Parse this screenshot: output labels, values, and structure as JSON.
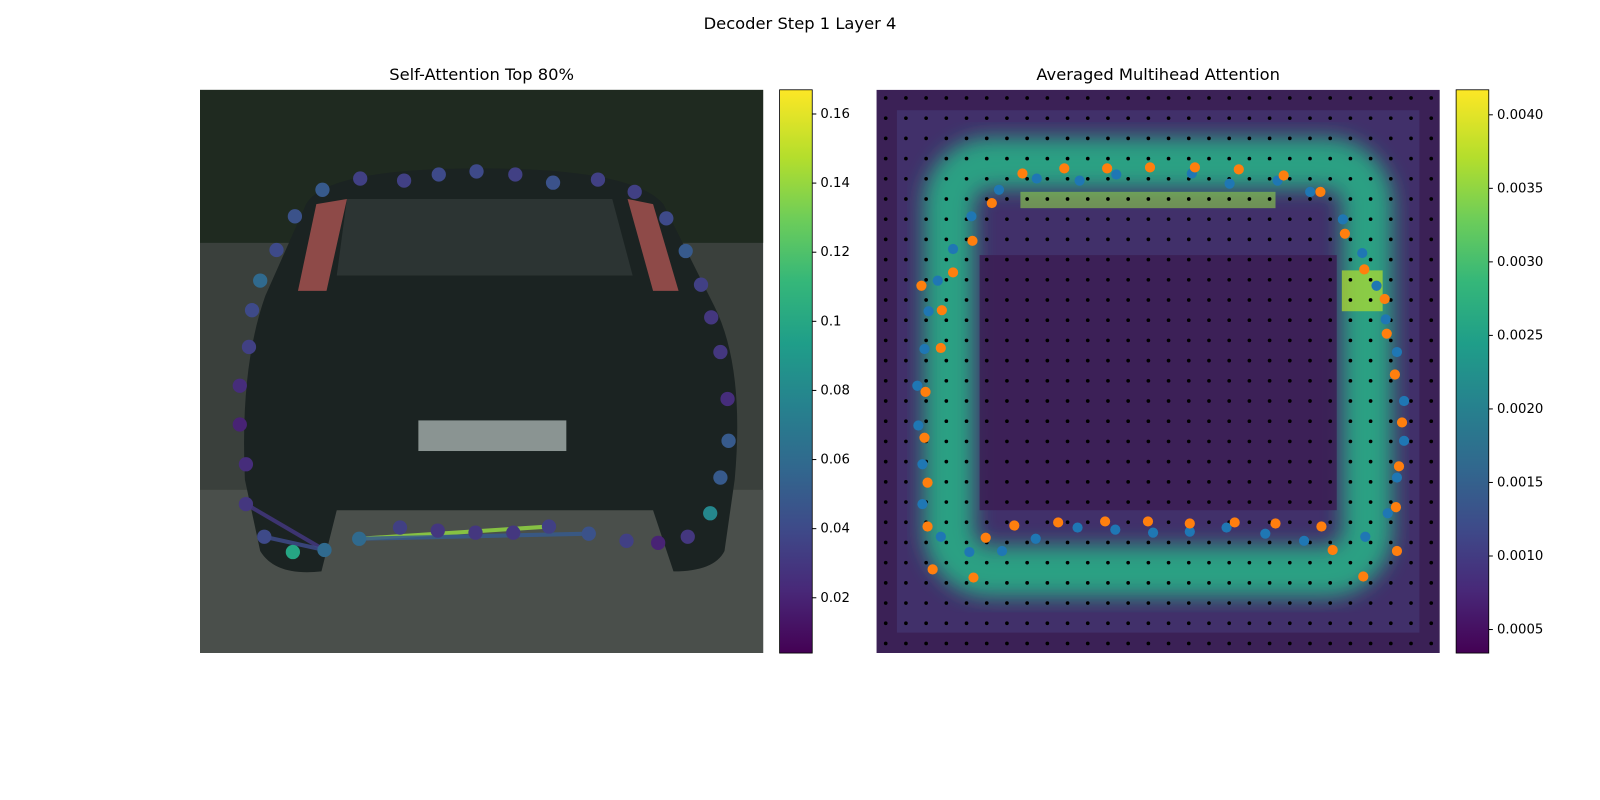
{
  "title": "Decoder Step 1 Layer 4",
  "chart_data": [
    {
      "type": "scatter",
      "title": "Self-Attention Top 80%",
      "points": {
        "x": [
          120,
          157,
          200,
          234,
          271,
          309,
          346,
          390,
          426,
          457,
          476,
          491,
          501,
          510,
          517,
          518,
          510,
          500,
          478,
          449,
          418,
          381,
          342,
          307,
          270,
          233,
          196,
          156,
          122,
          91,
          63,
          45,
          45,
          39,
          39,
          48,
          51,
          59,
          75,
          93
        ],
        "y": [
          98,
          87,
          89,
          83,
          80,
          83,
          91,
          88,
          100,
          126,
          158,
          191,
          223,
          257,
          303,
          344,
          380,
          415,
          438,
          444,
          442,
          435,
          428,
          434,
          434,
          432,
          429,
          440,
          451,
          453,
          438,
          406,
          367,
          328,
          290,
          252,
          216,
          187,
          157,
          124
        ],
        "values": [
          0.05,
          0.035,
          0.035,
          0.04,
          0.04,
          0.035,
          0.045,
          0.035,
          0.035,
          0.04,
          0.05,
          0.035,
          0.03,
          0.03,
          0.025,
          0.05,
          0.05,
          0.08,
          0.03,
          0.02,
          0.035,
          0.045,
          0.035,
          0.03,
          0.03,
          0.03,
          0.035,
          0.06,
          0.06,
          0.1,
          0.04,
          0.03,
          0.025,
          0.02,
          0.025,
          0.035,
          0.04,
          0.06,
          0.04,
          0.045
        ]
      },
      "links": [
        {
          "from": 27,
          "to": 22,
          "value": 0.14
        },
        {
          "from": 27,
          "to": 21,
          "value": 0.05
        },
        {
          "from": 31,
          "to": 28,
          "value": 0.03
        },
        {
          "from": 30,
          "to": 28,
          "value": 0.04
        }
      ],
      "clim": [
        0.004,
        0.167
      ],
      "cticks": [
        0.02,
        0.04,
        0.06,
        0.08,
        0.1,
        0.12,
        0.14,
        0.16
      ]
    },
    {
      "type": "scatter",
      "title": "Averaged Multihead Attention",
      "series": [
        {
          "color": "#1f77b4",
          "x": [
            157,
            199,
            235,
            309,
            346,
            393,
            425,
            457,
            476,
            490,
            499,
            510,
            517,
            517,
            510,
            501,
            479,
            419,
            381,
            343,
            307,
            271,
            234,
            197,
            156,
            123,
            91,
            63,
            45,
            45,
            41,
            40,
            47,
            51,
            60,
            75,
            93,
            120
          ],
          "y": [
            87,
            89,
            83,
            82,
            92,
            89,
            100,
            127,
            160,
            192,
            225,
            257,
            305,
            344,
            380,
            415,
            438,
            442,
            435,
            429,
            433,
            434,
            431,
            429,
            440,
            452,
            453,
            438,
            406,
            367,
            329,
            290,
            254,
            217,
            187,
            156,
            124,
            98
          ]
        },
        {
          "color": "#ff7f0e",
          "x": [
            143,
            184,
            226,
            268,
            312,
            355,
            399,
            435,
            459,
            478,
            498,
            500,
            508,
            515,
            512,
            509,
            510,
            477,
            447,
            436,
            391,
            351,
            307,
            266,
            224,
            178,
            135,
            107,
            95,
            55,
            50,
            50,
            47,
            48,
            63,
            64,
            75,
            94,
            113,
            44
          ],
          "y": [
            82,
            77,
            77,
            76,
            76,
            78,
            84,
            100,
            141,
            176,
            205,
            239,
            279,
            326,
            369,
            409,
            452,
            477,
            451,
            428,
            425,
            424,
            425,
            423,
            423,
            424,
            427,
            439,
            478,
            470,
            428,
            385,
            341,
            296,
            253,
            216,
            179,
            148,
            111,
            192
          ]
        }
      ],
      "clim": [
        0.00034,
        0.00417
      ],
      "cticks": [
        0.0005,
        {
          "value": 0.001,
          "label": "0.0010"
        },
        0.0015,
        {
          "value": 0.002,
          "label": "0.0020"
        },
        0.0025,
        {
          "value": 0.003,
          "label": "0.0030"
        },
        0.0035,
        {
          "value": 0.004,
          "label": "0.0040"
        }
      ]
    }
  ]
}
